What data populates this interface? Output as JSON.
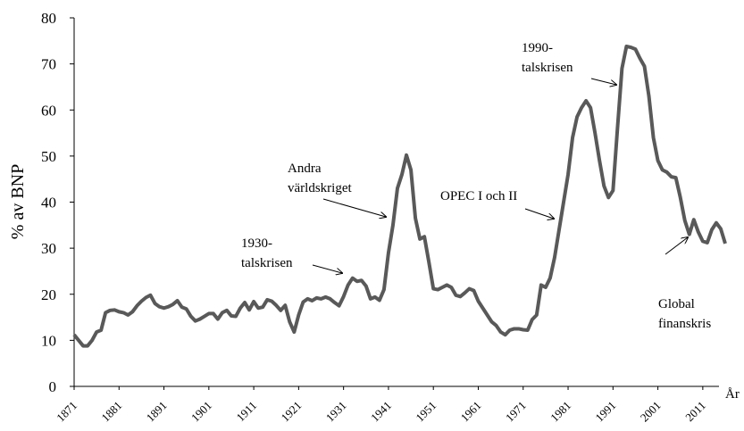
{
  "chart_data": {
    "type": "line",
    "ylabel": "% av BNP",
    "xlabel": "År",
    "xlim": [
      1871,
      2016
    ],
    "ylim": [
      0,
      80
    ],
    "yticks": [
      0,
      10,
      20,
      30,
      40,
      50,
      60,
      70,
      80
    ],
    "xticks": [
      1871,
      1881,
      1891,
      1901,
      1911,
      1921,
      1931,
      1941,
      1951,
      1961,
      1971,
      1981,
      1991,
      2001,
      2011
    ],
    "annotations": [
      {
        "lines": [
          "1930-",
          "talskrisen"
        ]
      },
      {
        "lines": [
          "Andra",
          "världskriget"
        ]
      },
      {
        "lines": [
          "OPEC I och II"
        ]
      },
      {
        "lines": [
          "1990-",
          "talskrisen"
        ]
      },
      {
        "lines": [
          "Global",
          "finanskris"
        ]
      }
    ],
    "series": [
      {
        "color": "#595959",
        "x": [
          1871,
          1872,
          1873,
          1874,
          1875,
          1876,
          1877,
          1878,
          1879,
          1880,
          1881,
          1882,
          1883,
          1884,
          1885,
          1886,
          1887,
          1888,
          1889,
          1890,
          1891,
          1892,
          1893,
          1894,
          1895,
          1896,
          1897,
          1898,
          1899,
          1900,
          1901,
          1902,
          1903,
          1904,
          1905,
          1906,
          1907,
          1908,
          1909,
          1910,
          1911,
          1912,
          1913,
          1914,
          1915,
          1916,
          1917,
          1918,
          1919,
          1920,
          1921,
          1922,
          1923,
          1924,
          1925,
          1926,
          1927,
          1928,
          1929,
          1930,
          1931,
          1932,
          1933,
          1934,
          1935,
          1936,
          1937,
          1938,
          1939,
          1940,
          1941,
          1942,
          1943,
          1944,
          1945,
          1946,
          1947,
          1948,
          1949,
          1950,
          1951,
          1952,
          1953,
          1954,
          1955,
          1956,
          1957,
          1958,
          1959,
          1960,
          1961,
          1962,
          1963,
          1964,
          1965,
          1966,
          1967,
          1968,
          1969,
          1970,
          1971,
          1972,
          1973,
          1974,
          1975,
          1976,
          1977,
          1978,
          1979,
          1980,
          1981,
          1982,
          1983,
          1984,
          1985,
          1986,
          1987,
          1988,
          1989,
          1990,
          1991,
          1992,
          1993,
          1994,
          1995,
          1996,
          1997,
          1998,
          1999,
          2000,
          2001,
          2002,
          2003,
          2004,
          2005,
          2006,
          2007,
          2008,
          2009,
          2010,
          2011,
          2012,
          2013,
          2014,
          2015,
          2016
        ],
        "values": [
          11.2,
          10,
          8.8,
          8.8,
          10,
          11.8,
          12.2,
          16,
          16.5,
          16.6,
          16.2,
          16,
          15.5,
          16.2,
          17.5,
          18.5,
          19.3,
          19.8,
          18,
          17.3,
          17,
          17.3,
          17.8,
          18.6,
          17.2,
          16.8,
          15.2,
          14.2,
          14.6,
          15.2,
          15.8,
          15.8,
          14.6,
          16,
          16.5,
          15.3,
          15.2,
          17,
          18.2,
          16.6,
          18.4,
          17,
          17.2,
          18.8,
          18.5,
          17.6,
          16.5,
          17.6,
          14,
          11.8,
          15.5,
          18.3,
          19,
          18.6,
          19.2,
          19,
          19.4,
          19,
          18.2,
          17.5,
          19.5,
          22,
          23.5,
          22.8,
          23,
          21.8,
          19,
          19.4,
          18.7,
          21,
          29,
          35,
          43,
          46,
          50.2,
          47,
          36.5,
          32,
          32.5,
          27,
          21.2,
          21,
          21.5,
          22,
          21.5,
          19.8,
          19.5,
          20.3,
          21.2,
          20.8,
          18.5,
          17,
          15.5,
          14,
          13.2,
          11.8,
          11.2,
          12.2,
          12.5,
          12.5,
          12.3,
          12.2,
          14.5,
          15.5,
          22,
          21.5,
          23.5,
          28,
          34,
          40,
          46,
          54,
          58.5,
          60.5,
          62,
          60.5,
          55,
          49,
          43.5,
          41,
          42.5,
          56,
          69,
          73.8,
          73.6,
          73.2,
          71.2,
          69.5,
          63,
          54,
          49,
          47,
          46.5,
          45.5,
          45.3,
          41,
          36,
          33,
          36.2,
          33.5,
          31.5,
          31.2,
          34,
          35.5,
          34.2,
          31
        ]
      }
    ]
  }
}
